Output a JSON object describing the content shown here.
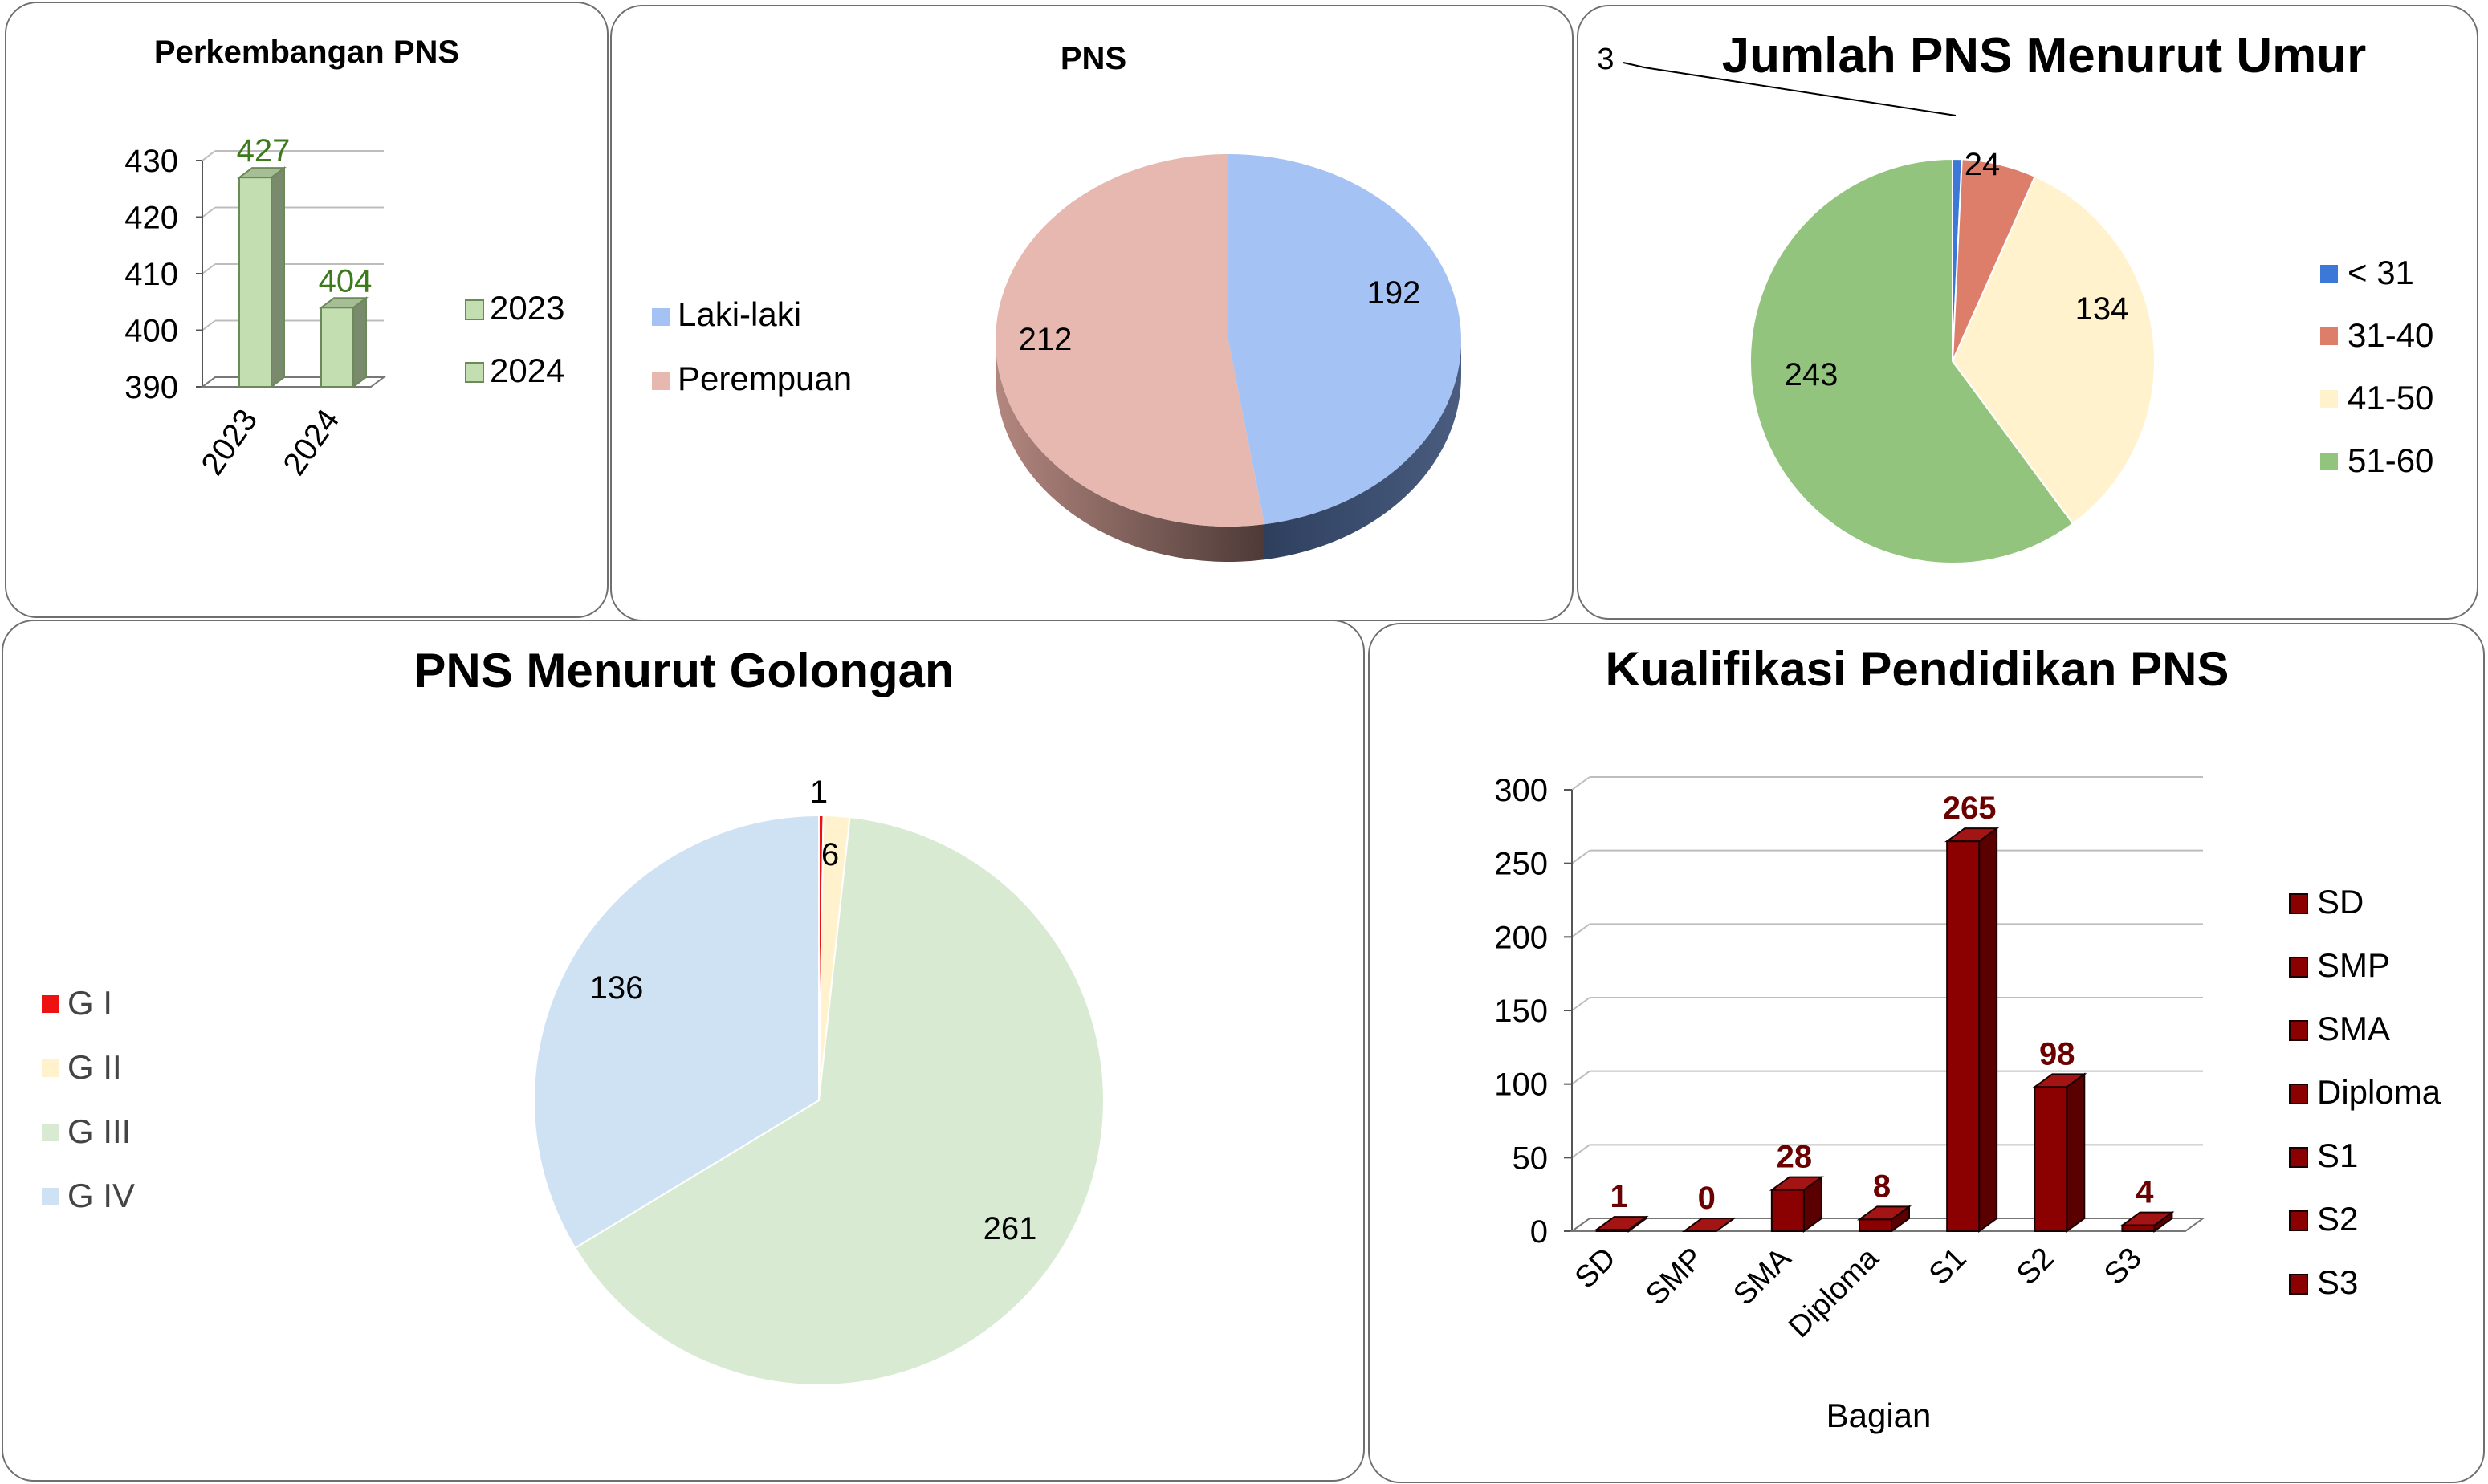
{
  "colors": {
    "bar_2023": "#c3deb0",
    "bar_2024": "#c3deb0",
    "bar_edge": "#6b8a57",
    "label_green": "#3c7a1c",
    "laki": "#a4c2f4",
    "perempuan": "#e6b8af",
    "age_lt31": "#3c78d8",
    "age_31_40": "#dd7e6b",
    "age_41_50": "#fff2cc",
    "age_51_60": "#93c47d",
    "g1": "#ee1111",
    "g2": "#fff2cc",
    "g3": "#d9ead3",
    "g4": "#cfe2f3",
    "edu_bar": "#8b0000",
    "edu_label": "#6b0000",
    "gridline": "#bdbdbd"
  },
  "chart_data": [
    {
      "id": "perkembangan",
      "type": "bar",
      "title": "Perkembangan PNS",
      "categories": [
        "2023",
        "2024"
      ],
      "values": [
        427,
        404
      ],
      "data_labels": [
        "427",
        "404"
      ],
      "yticks": [
        "430",
        "420",
        "410",
        "400",
        "390"
      ],
      "ylim": [
        390,
        430
      ],
      "legend": [
        "2023",
        "2024"
      ],
      "legend_position": "right",
      "grid": true
    },
    {
      "id": "pns_gender",
      "type": "pie",
      "title": "PNS",
      "labels": [
        "Laki-laki",
        "Perempuan"
      ],
      "values": [
        192,
        212
      ],
      "data_labels": [
        "192",
        "212"
      ],
      "legend_position": "left"
    },
    {
      "id": "umur",
      "type": "pie",
      "title": "Jumlah PNS Menurut Umur",
      "labels": [
        "< 31",
        "31-40",
        "41-50",
        "51-60"
      ],
      "values": [
        3,
        24,
        134,
        243
      ],
      "data_labels": [
        "3",
        "24",
        "134",
        "243"
      ],
      "legend_position": "right"
    },
    {
      "id": "golongan",
      "type": "pie",
      "title": "PNS Menurut Golongan",
      "labels": [
        "G I",
        "G II",
        "G III",
        "G IV"
      ],
      "values": [
        1,
        6,
        261,
        136
      ],
      "data_labels": [
        "1",
        "6",
        "261",
        "136"
      ],
      "legend_position": "left"
    },
    {
      "id": "pendidikan",
      "type": "bar",
      "title": "Kualifikasi Pendidikan PNS",
      "xlabel": "Bagian",
      "categories": [
        "SD",
        "SMP",
        "SMA",
        "Diploma",
        "S1",
        "S2",
        "S3"
      ],
      "values": [
        1,
        0,
        28,
        8,
        265,
        98,
        4
      ],
      "data_labels": [
        "1",
        "0",
        "28",
        "8",
        "265",
        "98",
        "4"
      ],
      "yticks": [
        "300",
        "250",
        "200",
        "150",
        "100",
        "50",
        "0"
      ],
      "ylim": [
        0,
        300
      ],
      "legend": [
        "SD",
        "SMP",
        "SMA",
        "Diploma",
        "S1",
        "S2",
        "S3"
      ],
      "legend_position": "right",
      "grid": true
    }
  ]
}
